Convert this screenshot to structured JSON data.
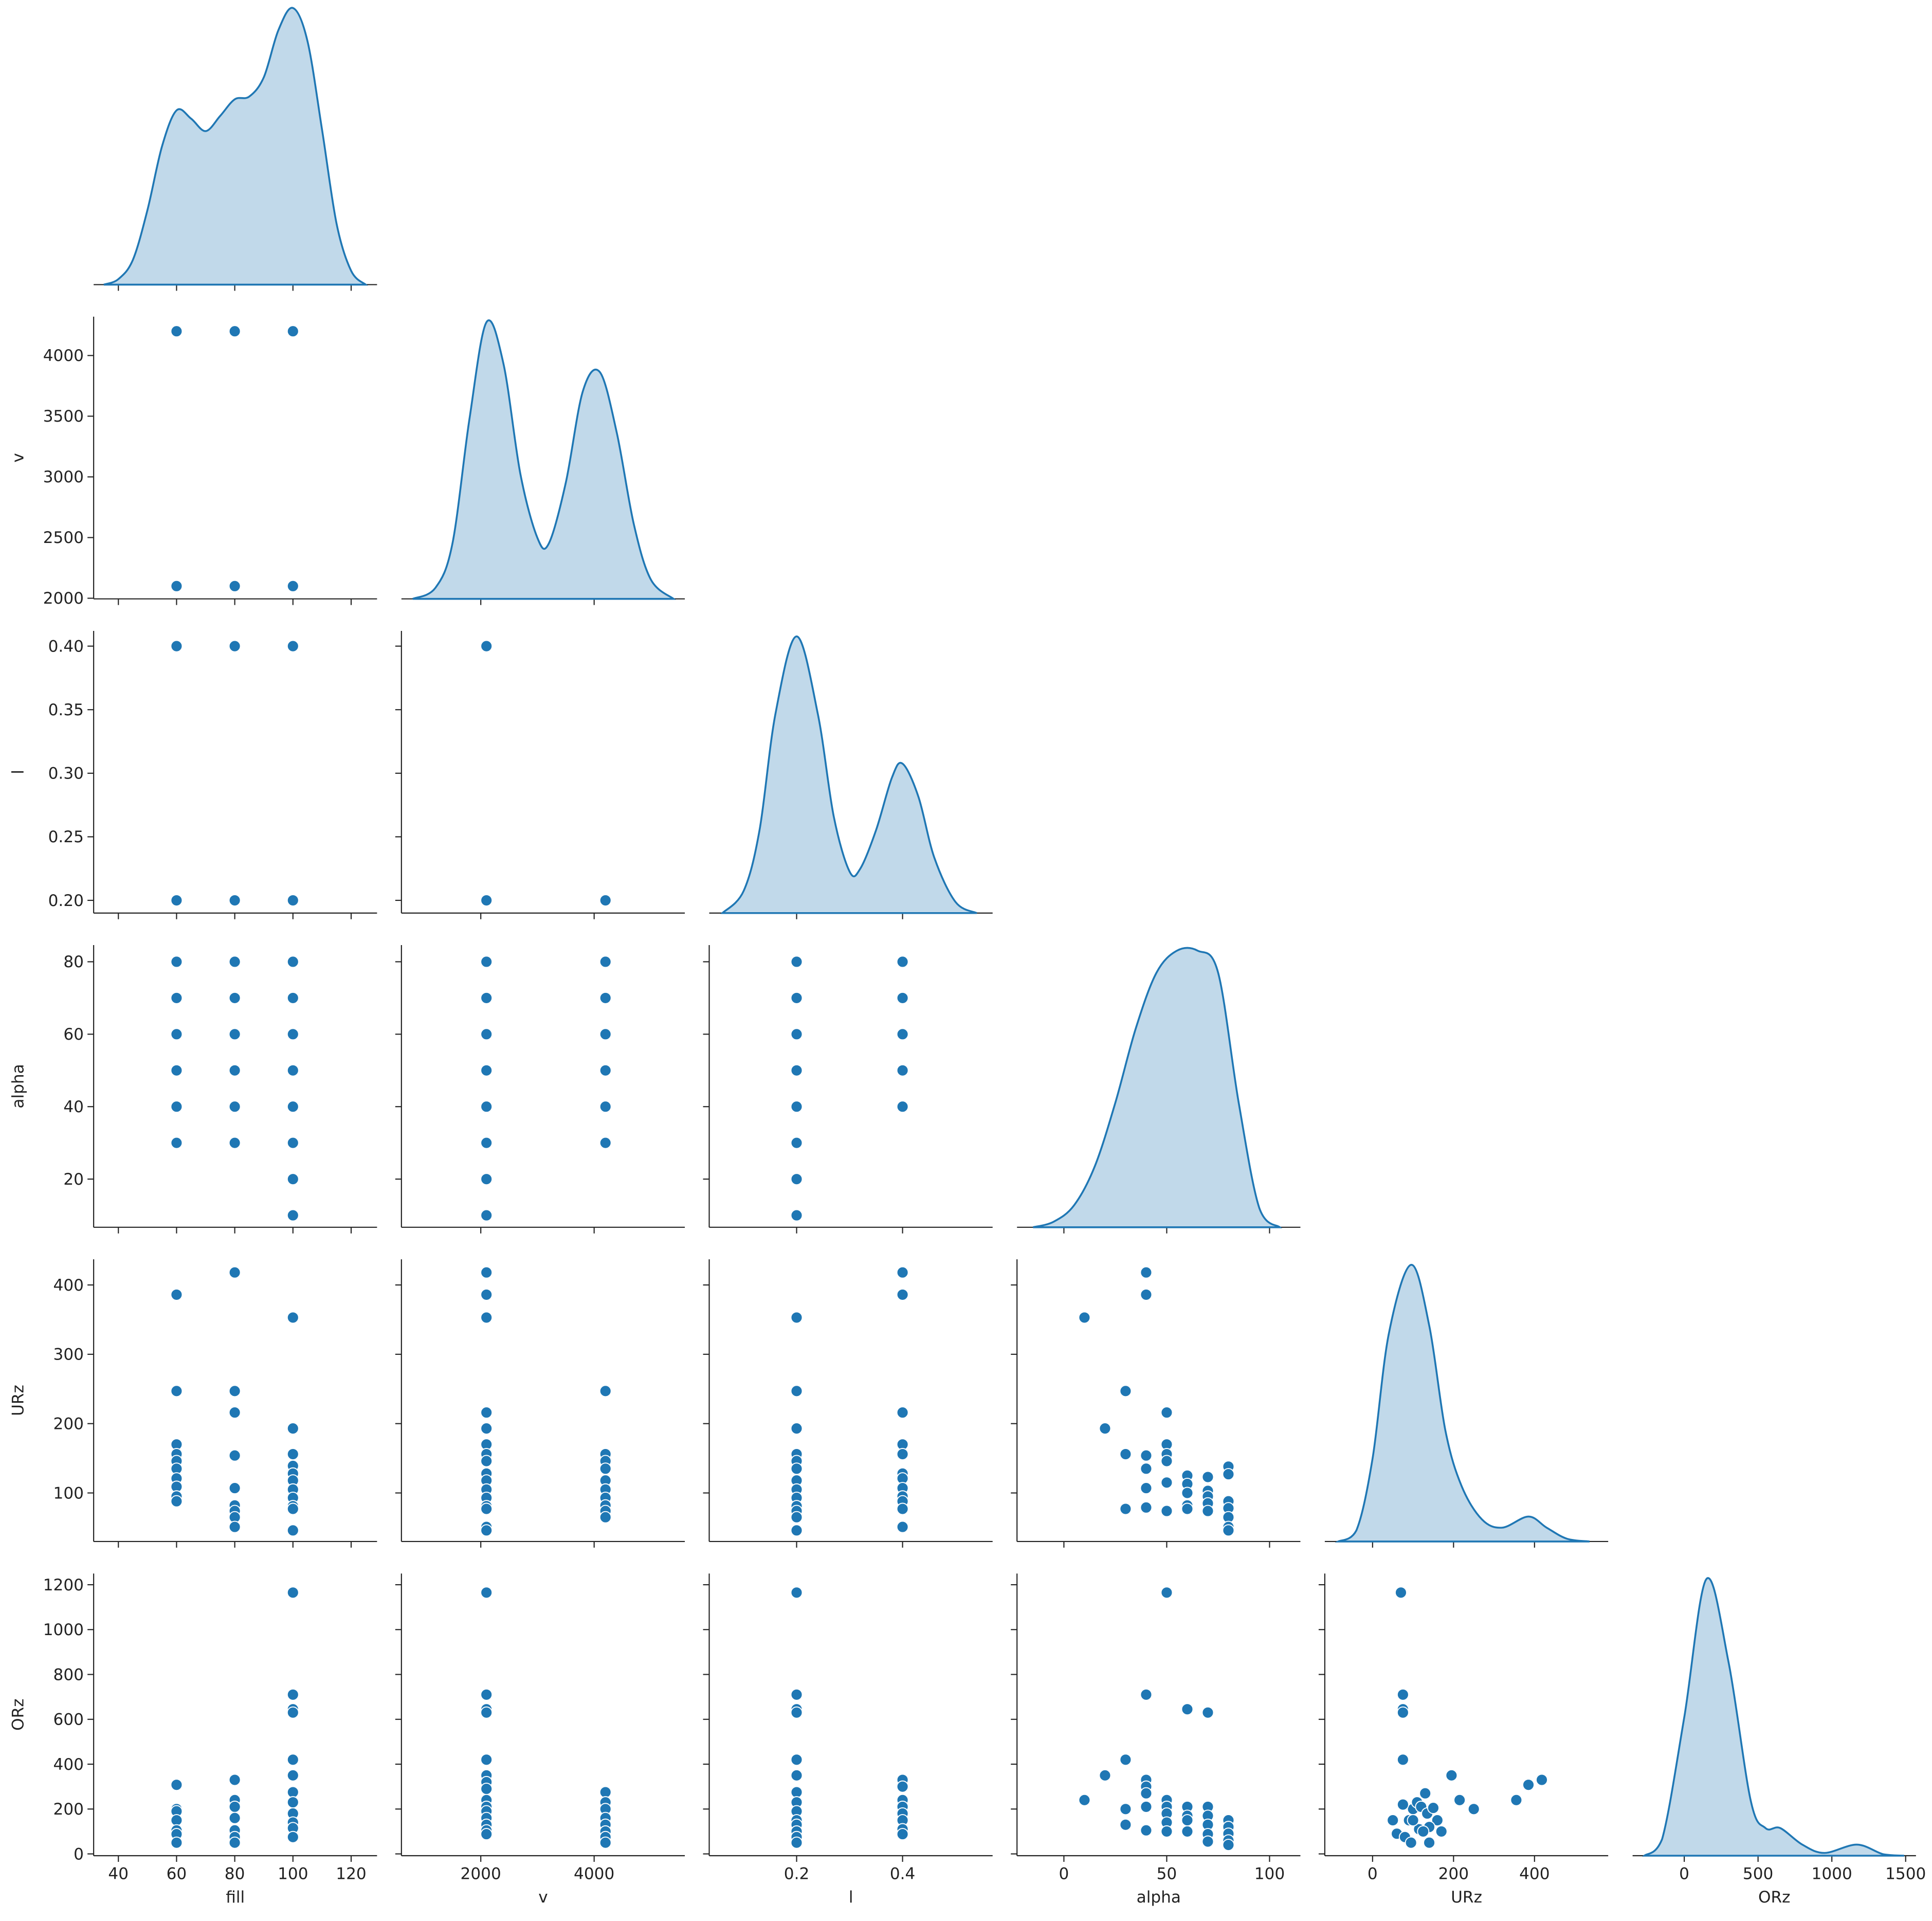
{
  "chart_data": [
    {
      "type": "kde",
      "color": "#1f77b4",
      "x": [
        35,
        40,
        45,
        50,
        55,
        60,
        65,
        70,
        75,
        80,
        85,
        90,
        95,
        100,
        105,
        110,
        115,
        120,
        125
      ],
      "values": [
        0,
        0.02,
        0.09,
        0.27,
        0.5,
        0.63,
        0.6,
        0.555,
        0.61,
        0.67,
        0.68,
        0.75,
        0.92,
        1.0,
        0.88,
        0.56,
        0.22,
        0.05,
        0
      ],
      "xlim": [
        31.5,
        128.9
      ],
      "ylim": [
        0,
        1.02
      ],
      "xticks": [
        40,
        60,
        80,
        100,
        120
      ]
    },
    {
      "type": "scatter",
      "color": "#1f77b4",
      "ylabel": "v",
      "x": [
        60,
        80,
        100,
        60,
        80,
        100
      ],
      "values": [
        4200,
        4200,
        4200,
        2100,
        2100,
        2100
      ],
      "xlim": [
        31.5,
        128.9
      ],
      "ylim": [
        1995,
        4320
      ],
      "xticks": [
        40,
        60,
        80,
        100,
        120
      ],
      "yticks": [
        2000,
        2500,
        3000,
        3500,
        4000
      ]
    },
    {
      "type": "kde",
      "color": "#1f77b4",
      "x": [
        800,
        1200,
        1500,
        1800,
        2100,
        2400,
        2700,
        3000,
        3200,
        3500,
        3800,
        4100,
        4400,
        4700,
        5000,
        5400
      ],
      "values": [
        0,
        0.04,
        0.2,
        0.65,
        1.0,
        0.85,
        0.45,
        0.22,
        0.2,
        0.42,
        0.75,
        0.82,
        0.6,
        0.27,
        0.07,
        0
      ],
      "xlim": [
        600,
        5600
      ],
      "ylim": [
        0,
        1.02
      ],
      "xticks": [
        2000,
        4000
      ]
    },
    {
      "type": "scatter",
      "color": "#1f77b4",
      "ylabel": "l",
      "x": [
        60,
        80,
        100,
        60,
        80,
        100
      ],
      "values": [
        0.4,
        0.4,
        0.4,
        0.2,
        0.2,
        0.2
      ],
      "xlim": [
        31.5,
        128.9
      ],
      "ylim": [
        0.19,
        0.412
      ],
      "xticks": [
        40,
        60,
        80,
        100,
        120
      ],
      "yticks": [
        {
          "value": 0.2,
          "label": "0.20"
        },
        0.25,
        {
          "value": 0.3,
          "label": "0.30"
        },
        0.35,
        {
          "value": 0.4,
          "label": "0.40"
        }
      ]
    },
    {
      "type": "scatter",
      "color": "#1f77b4",
      "x": [
        2100,
        2100,
        4200
      ],
      "values": [
        0.4,
        0.2,
        0.2
      ],
      "xlim": [
        600,
        5600
      ],
      "ylim": [
        0.19,
        0.412
      ],
      "xticks": [
        2000,
        4000
      ],
      "yticks": [
        0.2,
        0.25,
        0.3,
        0.35,
        0.4
      ]
    },
    {
      "type": "kde",
      "color": "#1f77b4",
      "x": [
        0.06,
        0.1,
        0.13,
        0.16,
        0.2,
        0.24,
        0.27,
        0.3,
        0.32,
        0.35,
        0.38,
        0.4,
        0.43,
        0.46,
        0.5,
        0.54
      ],
      "values": [
        0,
        0.08,
        0.3,
        0.72,
        1.0,
        0.72,
        0.35,
        0.15,
        0.16,
        0.3,
        0.49,
        0.54,
        0.42,
        0.2,
        0.04,
        0
      ],
      "xlim": [
        0.035,
        0.57
      ],
      "ylim": [
        0,
        1.02
      ],
      "xticks": [
        0.2,
        0.4
      ]
    },
    {
      "type": "scatter",
      "color": "#1f77b4",
      "ylabel": "alpha",
      "x": [
        60,
        60,
        60,
        60,
        60,
        60,
        80,
        80,
        80,
        80,
        80,
        80,
        100,
        100,
        100,
        100,
        100,
        100,
        100,
        100
      ],
      "values": [
        30,
        40,
        50,
        60,
        70,
        80,
        30,
        40,
        50,
        60,
        70,
        80,
        10,
        20,
        30,
        40,
        50,
        60,
        70,
        80
      ],
      "xlim": [
        31.5,
        128.9
      ],
      "ylim": [
        6.7,
        84.6
      ],
      "xticks": [
        40,
        60,
        80,
        100,
        120
      ],
      "yticks": [
        20,
        40,
        60,
        80
      ]
    },
    {
      "type": "scatter",
      "color": "#1f77b4",
      "x": [
        2100,
        2100,
        2100,
        2100,
        2100,
        2100,
        2100,
        2100,
        4200,
        4200,
        4200,
        4200,
        4200,
        4200
      ],
      "values": [
        10,
        20,
        30,
        40,
        50,
        60,
        70,
        80,
        30,
        40,
        50,
        60,
        70,
        80
      ],
      "xlim": [
        600,
        5600
      ],
      "ylim": [
        6.7,
        84.6
      ],
      "xticks": [
        2000,
        4000
      ],
      "yticks": [
        20,
        40,
        60,
        80
      ]
    },
    {
      "type": "scatter",
      "color": "#1f77b4",
      "x": [
        0.2,
        0.2,
        0.2,
        0.2,
        0.2,
        0.2,
        0.2,
        0.2,
        0.4,
        0.4,
        0.4,
        0.4,
        0.4
      ],
      "values": [
        10,
        20,
        30,
        40,
        50,
        60,
        70,
        80,
        40,
        50,
        60,
        70,
        80
      ],
      "xlim": [
        0.035,
        0.57
      ],
      "ylim": [
        6.7,
        84.6
      ],
      "xticks": [
        0.2,
        0.4
      ],
      "yticks": [
        20,
        40,
        60,
        80
      ]
    },
    {
      "type": "kde",
      "color": "#1f77b4",
      "x": [
        -15,
        -5,
        5,
        15,
        25,
        35,
        45,
        55,
        65,
        75,
        85,
        95,
        105
      ],
      "values": [
        0,
        0.02,
        0.08,
        0.22,
        0.45,
        0.72,
        0.92,
        1.0,
        1.0,
        0.92,
        0.45,
        0.07,
        0
      ],
      "xlim": [
        -22.8,
        115
      ],
      "ylim": [
        0,
        1.02
      ],
      "xticks": [
        0,
        50,
        100
      ]
    },
    {
      "type": "scatter",
      "color": "#1f77b4",
      "ylabel": "URz",
      "x": [
        60,
        60,
        60,
        60,
        60,
        60,
        60,
        60,
        60,
        60,
        80,
        80,
        80,
        80,
        80,
        80,
        80,
        80,
        80,
        100,
        100,
        100,
        100,
        100,
        100,
        100,
        100,
        100,
        100,
        100
      ],
      "values": [
        386,
        247,
        170,
        156,
        146,
        135,
        121,
        109,
        95,
        88,
        418,
        247,
        216,
        154,
        107,
        82,
        74,
        65,
        51,
        353,
        193,
        156,
        139,
        128,
        118,
        105,
        93,
        81,
        77,
        46
      ],
      "xlim": [
        31.5,
        128.9
      ],
      "ylim": [
        30,
        437
      ],
      "xticks": [
        40,
        60,
        80,
        100,
        120
      ],
      "yticks": [
        100,
        200,
        300,
        400
      ]
    },
    {
      "type": "scatter",
      "color": "#1f77b4",
      "x": [
        2100,
        2100,
        2100,
        2100,
        2100,
        2100,
        2100,
        2100,
        2100,
        2100,
        2100,
        2100,
        2100,
        2100,
        2100,
        2100,
        4200,
        4200,
        4200,
        4200,
        4200,
        4200,
        4200,
        4200,
        4200,
        4200
      ],
      "values": [
        418,
        386,
        353,
        216,
        193,
        170,
        156,
        146,
        128,
        118,
        105,
        93,
        81,
        77,
        51,
        46,
        247,
        156,
        146,
        135,
        118,
        105,
        93,
        82,
        74,
        65
      ],
      "xlim": [
        600,
        5600
      ],
      "ylim": [
        30,
        437
      ],
      "xticks": [
        2000,
        4000
      ],
      "yticks": [
        100,
        200,
        300,
        400
      ]
    },
    {
      "type": "scatter",
      "color": "#1f77b4",
      "x": [
        0.2,
        0.2,
        0.2,
        0.2,
        0.2,
        0.2,
        0.2,
        0.2,
        0.2,
        0.2,
        0.2,
        0.2,
        0.2,
        0.4,
        0.4,
        0.4,
        0.4,
        0.4,
        0.4,
        0.4,
        0.4,
        0.4,
        0.4,
        0.4,
        0.4
      ],
      "values": [
        353,
        247,
        193,
        156,
        146,
        135,
        118,
        105,
        93,
        81,
        74,
        65,
        46,
        418,
        386,
        216,
        170,
        156,
        128,
        121,
        107,
        95,
        88,
        77,
        51
      ],
      "xlim": [
        0.035,
        0.57
      ],
      "ylim": [
        30,
        437
      ],
      "xticks": [
        0.2,
        0.4
      ],
      "yticks": [
        100,
        200,
        300,
        400
      ]
    },
    {
      "type": "scatter",
      "color": "#1f77b4",
      "x": [
        10,
        20,
        30,
        30,
        30,
        40,
        40,
        40,
        40,
        40,
        40,
        50,
        50,
        50,
        50,
        50,
        50,
        60,
        60,
        60,
        60,
        60,
        70,
        70,
        70,
        70,
        70,
        80,
        80,
        80,
        80,
        80,
        80,
        80
      ],
      "values": [
        353,
        193,
        247,
        156,
        77,
        418,
        386,
        154,
        135,
        107,
        79,
        216,
        170,
        156,
        146,
        115,
        74,
        125,
        113,
        100,
        82,
        77,
        123,
        103,
        95,
        85,
        74,
        138,
        127,
        88,
        78,
        65,
        51,
        46
      ],
      "xlim": [
        -22.8,
        115
      ],
      "ylim": [
        30,
        437
      ],
      "xticks": [
        0,
        50,
        100
      ],
      "yticks": [
        100,
        200,
        300,
        400
      ]
    },
    {
      "type": "kde",
      "color": "#1f77b4",
      "x": [
        -85,
        -40,
        0,
        40,
        95,
        140,
        180,
        220,
        270,
        320,
        385,
        430,
        480,
        536
      ],
      "values": [
        0,
        0.04,
        0.3,
        0.75,
        1.0,
        0.78,
        0.4,
        0.2,
        0.08,
        0.05,
        0.09,
        0.05,
        0.01,
        0
      ],
      "xlim": [
        -118,
        582
      ],
      "ylim": [
        0,
        1.02
      ],
      "xticks": [
        0,
        200,
        400
      ]
    },
    {
      "type": "scatter",
      "color": "#1f77b4",
      "xlabel": "fill",
      "ylabel": "ORz",
      "x": [
        60,
        60,
        60,
        60,
        60,
        60,
        60,
        80,
        80,
        80,
        80,
        80,
        80,
        80,
        100,
        100,
        100,
        100,
        100,
        100,
        100,
        100,
        100,
        100,
        100,
        100
      ],
      "values": [
        308,
        200,
        190,
        150,
        105,
        88,
        50,
        330,
        240,
        210,
        160,
        105,
        75,
        50,
        1165,
        710,
        645,
        630,
        420,
        350,
        275,
        230,
        180,
        140,
        115,
        75
      ],
      "xlim": [
        31.5,
        128.9
      ],
      "ylim": [
        -8,
        1250
      ],
      "xticks": [
        40,
        60,
        80,
        100,
        120
      ],
      "yticks": [
        0,
        200,
        400,
        600,
        800,
        1000,
        1200
      ]
    },
    {
      "type": "scatter",
      "color": "#1f77b4",
      "xlabel": "v",
      "x": [
        2100,
        2100,
        2100,
        2100,
        2100,
        2100,
        2100,
        2100,
        2100,
        2100,
        2100,
        2100,
        2100,
        2100,
        2100,
        4200,
        4200,
        4200,
        4200,
        4200,
        4200,
        4200,
        4200
      ],
      "values": [
        1165,
        710,
        645,
        630,
        420,
        350,
        320,
        290,
        240,
        210,
        190,
        160,
        130,
        105,
        88,
        275,
        230,
        200,
        160,
        130,
        100,
        75,
        50
      ],
      "xlim": [
        600,
        5600
      ],
      "ylim": [
        -8,
        1250
      ],
      "xticks": [
        2000,
        4000
      ],
      "yticks": [
        0,
        200,
        400,
        600,
        800,
        1000,
        1200
      ]
    },
    {
      "type": "scatter",
      "color": "#1f77b4",
      "xlabel": "l",
      "x": [
        0.2,
        0.2,
        0.2,
        0.2,
        0.2,
        0.2,
        0.2,
        0.2,
        0.2,
        0.2,
        0.2,
        0.2,
        0.2,
        0.2,
        0.4,
        0.4,
        0.4,
        0.4,
        0.4,
        0.4,
        0.4,
        0.4
      ],
      "values": [
        1165,
        710,
        645,
        630,
        420,
        350,
        275,
        230,
        190,
        150,
        130,
        100,
        75,
        50,
        330,
        300,
        240,
        210,
        180,
        150,
        110,
        88
      ],
      "xlim": [
        0.035,
        0.57
      ],
      "ylim": [
        -8,
        1250
      ],
      "xticks": [
        0.2,
        0.4
      ],
      "yticks": [
        0,
        200,
        400,
        600,
        800,
        1000,
        1200
      ]
    },
    {
      "type": "scatter",
      "color": "#1f77b4",
      "xlabel": "alpha",
      "x": [
        10,
        20,
        30,
        30,
        30,
        40,
        40,
        40,
        40,
        40,
        40,
        50,
        50,
        50,
        50,
        50,
        50,
        60,
        60,
        60,
        60,
        60,
        70,
        70,
        70,
        70,
        70,
        70,
        80,
        80,
        80,
        80,
        80
      ],
      "values": [
        240,
        350,
        420,
        200,
        130,
        710,
        330,
        300,
        270,
        210,
        105,
        1165,
        240,
        210,
        180,
        140,
        100,
        645,
        210,
        170,
        150,
        100,
        630,
        210,
        170,
        130,
        88,
        55,
        150,
        120,
        90,
        60,
        40
      ],
      "xlim": [
        -22.8,
        115
      ],
      "ylim": [
        -8,
        1250
      ],
      "xticks": [
        0,
        50,
        100
      ],
      "yticks": [
        0,
        200,
        400,
        600,
        800,
        1000,
        1200
      ]
    },
    {
      "type": "scatter",
      "color": "#1f77b4",
      "xlabel": "URz",
      "x": [
        70,
        75,
        75,
        75,
        75,
        195,
        385,
        418,
        355,
        215,
        250,
        50,
        90,
        100,
        110,
        120,
        130,
        135,
        150,
        160,
        170,
        115,
        140,
        60,
        80,
        95,
        140,
        75,
        125,
        100
      ],
      "values": [
        1165,
        710,
        645,
        630,
        420,
        350,
        308,
        330,
        240,
        240,
        200,
        150,
        150,
        200,
        230,
        210,
        270,
        180,
        205,
        150,
        100,
        110,
        120,
        90,
        75,
        50,
        50,
        220,
        100,
        150
      ],
      "xlim": [
        -118,
        582
      ],
      "ylim": [
        -8,
        1250
      ],
      "xticks": [
        0,
        200,
        400
      ],
      "yticks": [
        0,
        200,
        400,
        600,
        800,
        1000,
        1200
      ]
    },
    {
      "type": "kde",
      "color": "#1f77b4",
      "xlabel": "ORz",
      "x": [
        -270,
        -150,
        0,
        150,
        300,
        450,
        550,
        650,
        800,
        950,
        1170,
        1350,
        1490
      ],
      "values": [
        0,
        0.06,
        0.5,
        1.0,
        0.7,
        0.2,
        0.1,
        0.1,
        0.04,
        0.01,
        0.04,
        0.005,
        0
      ],
      "xlim": [
        -350,
        1570
      ],
      "ylim": [
        0,
        1.02
      ],
      "xticks": [
        0,
        500,
        1000,
        1500
      ]
    }
  ]
}
